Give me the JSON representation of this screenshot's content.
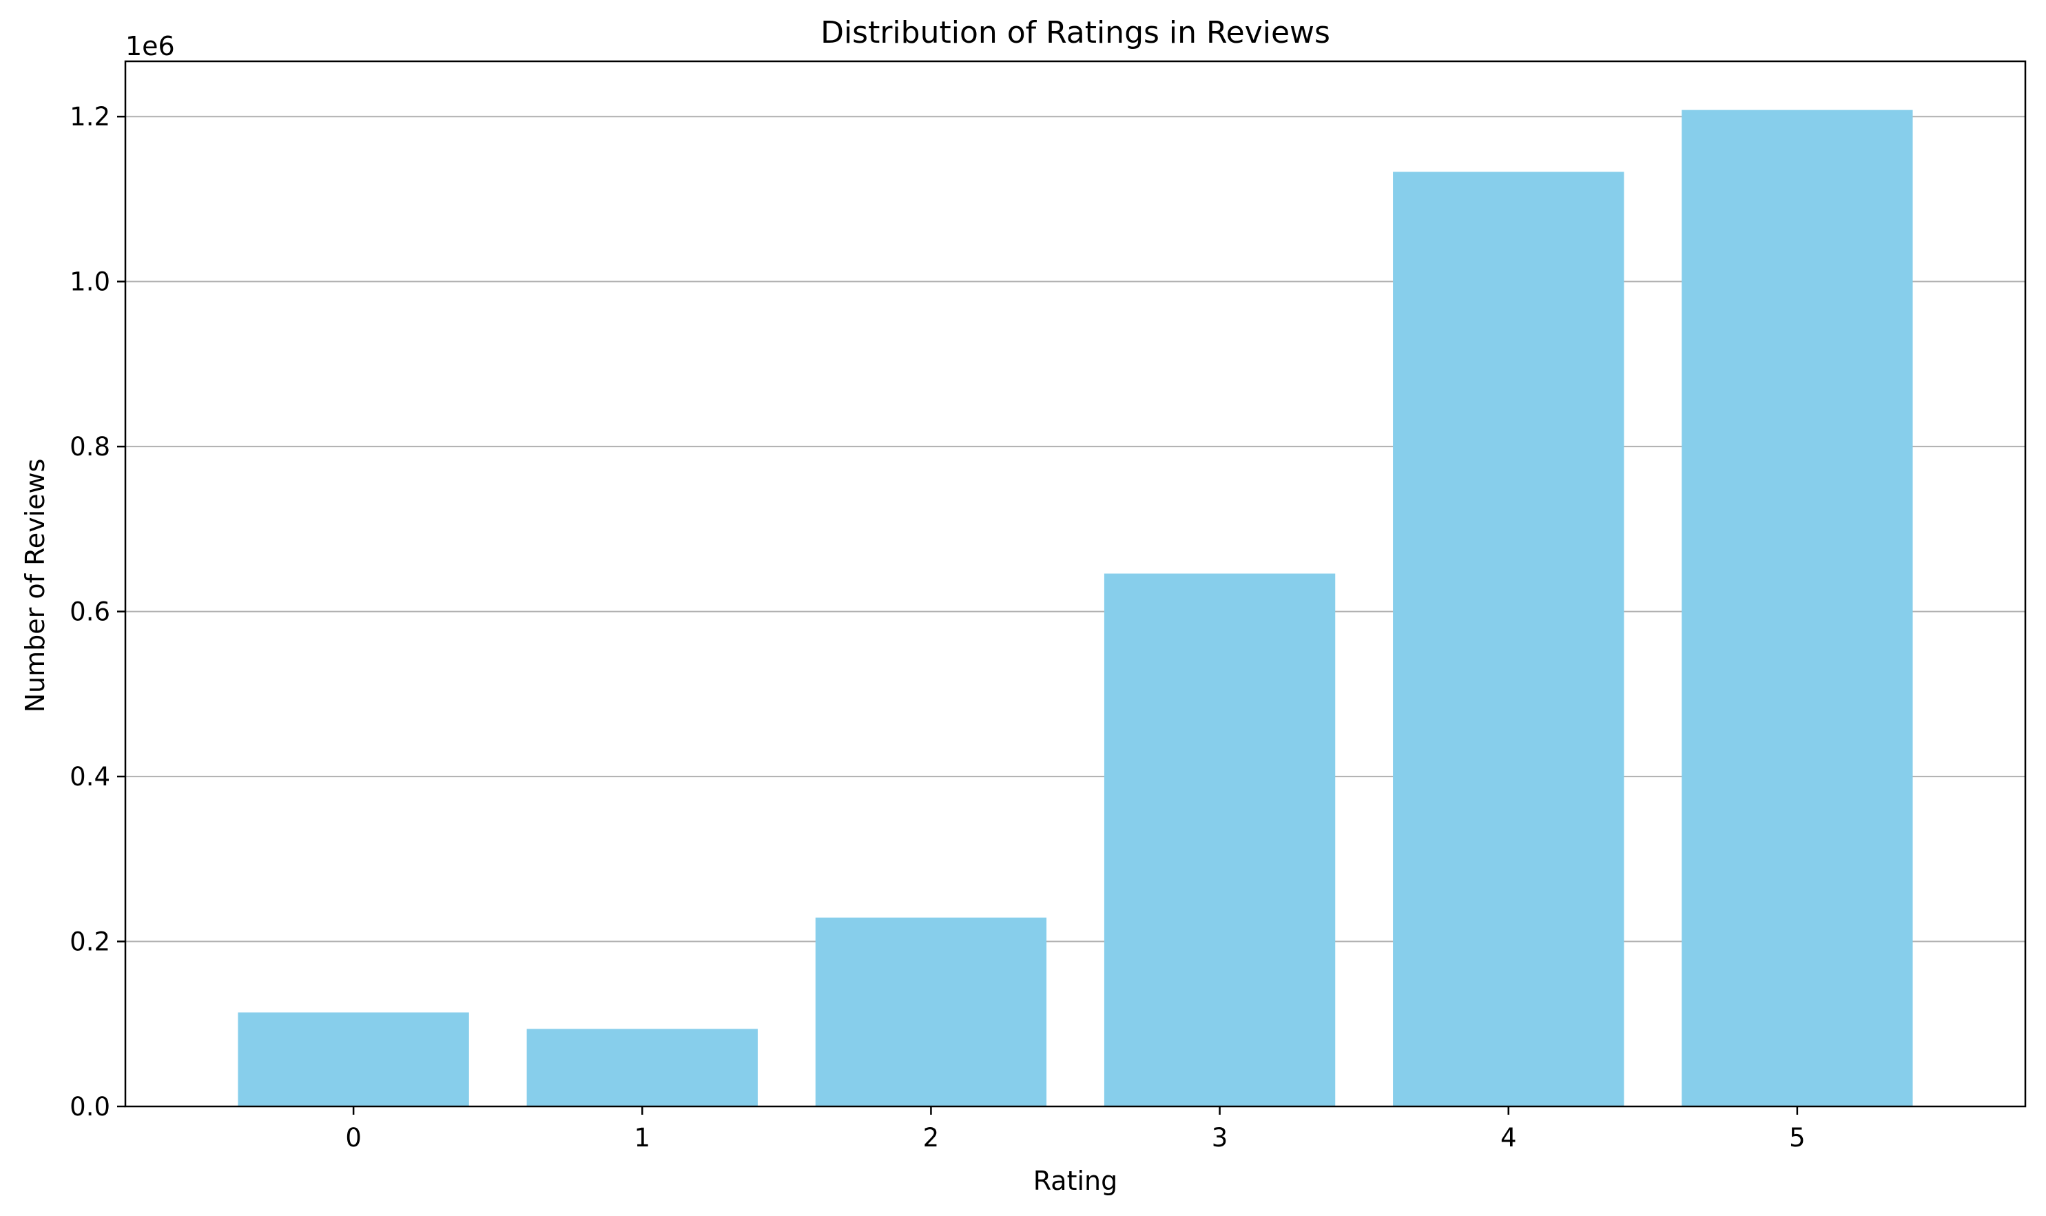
{
  "chart_data": {
    "type": "bar",
    "title": "Distribution of Ratings in Reviews",
    "xlabel": "Rating",
    "ylabel": "Number of Reviews",
    "y_offset_label": "1e6",
    "categories": [
      "0",
      "1",
      "2",
      "3",
      "4",
      "5"
    ],
    "values": [
      114000,
      94000,
      229000,
      646000,
      1133000,
      1208000
    ],
    "ylim": [
      0,
      1267000
    ],
    "y_ticks": [
      0,
      200000,
      400000,
      600000,
      800000,
      1000000,
      1200000
    ],
    "y_tick_labels": [
      "0.0",
      "0.2",
      "0.4",
      "0.6",
      "0.8",
      "1.0",
      "1.2"
    ],
    "grid": "horizontal",
    "legend": "none",
    "colors": {
      "bar": "#87ceeb",
      "grid": "#b0b0b0",
      "axes": "#000000"
    }
  }
}
